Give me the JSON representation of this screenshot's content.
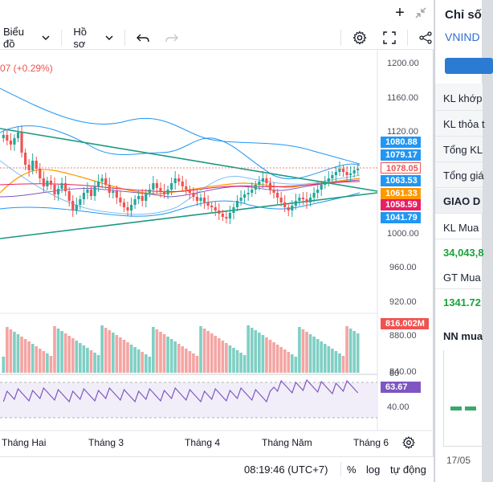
{
  "toolbar": {
    "chart_label": "Biểu đồ",
    "profile_label": "Hồ sơ"
  },
  "legend": {
    "change_text": "07 (+0.29%)"
  },
  "price_axis": [
    "1200.00",
    "1160.00",
    "1120.00",
    "1000.00",
    "960.00",
    "920.00",
    "880.00",
    "840.00"
  ],
  "price_tags": [
    {
      "text": "1080.88",
      "color": "#2196f3"
    },
    {
      "text": "1079.17",
      "color": "#2196f3"
    },
    {
      "text": "1078.05",
      "color": "#ffffff"
    },
    {
      "text": "1063.53",
      "color": "#2196f3"
    },
    {
      "text": "1061.33",
      "color": "#ff9800"
    },
    {
      "text": "1058.59",
      "color": "#e91e63"
    },
    {
      "text": "1041.79",
      "color": "#2196f3"
    }
  ],
  "volume_tag": "816.002M",
  "rsi": {
    "value": "63.67",
    "levels": [
      "80",
      "40.00"
    ]
  },
  "time_axis": [
    "Tháng Hai",
    "Tháng 3",
    "Tháng 4",
    "Tháng Năm",
    "Tháng 6"
  ],
  "bottombar": {
    "clock": "08:19:46 (UTC+7)",
    "percent": "%",
    "log": "log",
    "auto": "tự động"
  },
  "side_panel": {
    "title": "Chỉ số",
    "index_name": "VNIND",
    "rows": [
      "KL khớp",
      "KL thỏa t",
      "Tổng KL",
      "Tổng giá"
    ],
    "section_header": "GIAO D",
    "kl_mua_label": "KL Mua",
    "kl_mua_value": "34,043,8",
    "gt_mua_label": "GT Mua",
    "gt_mua_value": "1341.72",
    "nn_label": "NN mua",
    "date_label": "17/05"
  },
  "colors": {
    "up": "#26a69a",
    "down": "#ef5350",
    "accent": "#2196f3",
    "trendline": "#1a9a7f",
    "rsi_line": "#7e57c2"
  },
  "chart_data": {
    "type": "candlestick",
    "price_axis_ticks": [
      1200,
      1160,
      1120,
      1000,
      960,
      920,
      880,
      840
    ],
    "price_ylim": [
      840,
      1200
    ],
    "rsi_ylim": [
      40,
      80
    ],
    "time_ticks": [
      "Tháng Hai",
      "Tháng 3",
      "Tháng 4",
      "Tháng Năm",
      "Tháng 6"
    ],
    "last_close": 1078.05,
    "change_text": "07 (+0.29%)",
    "bollinger": {
      "upper": 1080.88,
      "middle": 1063.53,
      "lower": 1041.79
    },
    "moving_averages": [
      1079.17,
      1061.33,
      1058.59
    ],
    "last_volume": "816.002M",
    "rsi_last": 63.67
  }
}
